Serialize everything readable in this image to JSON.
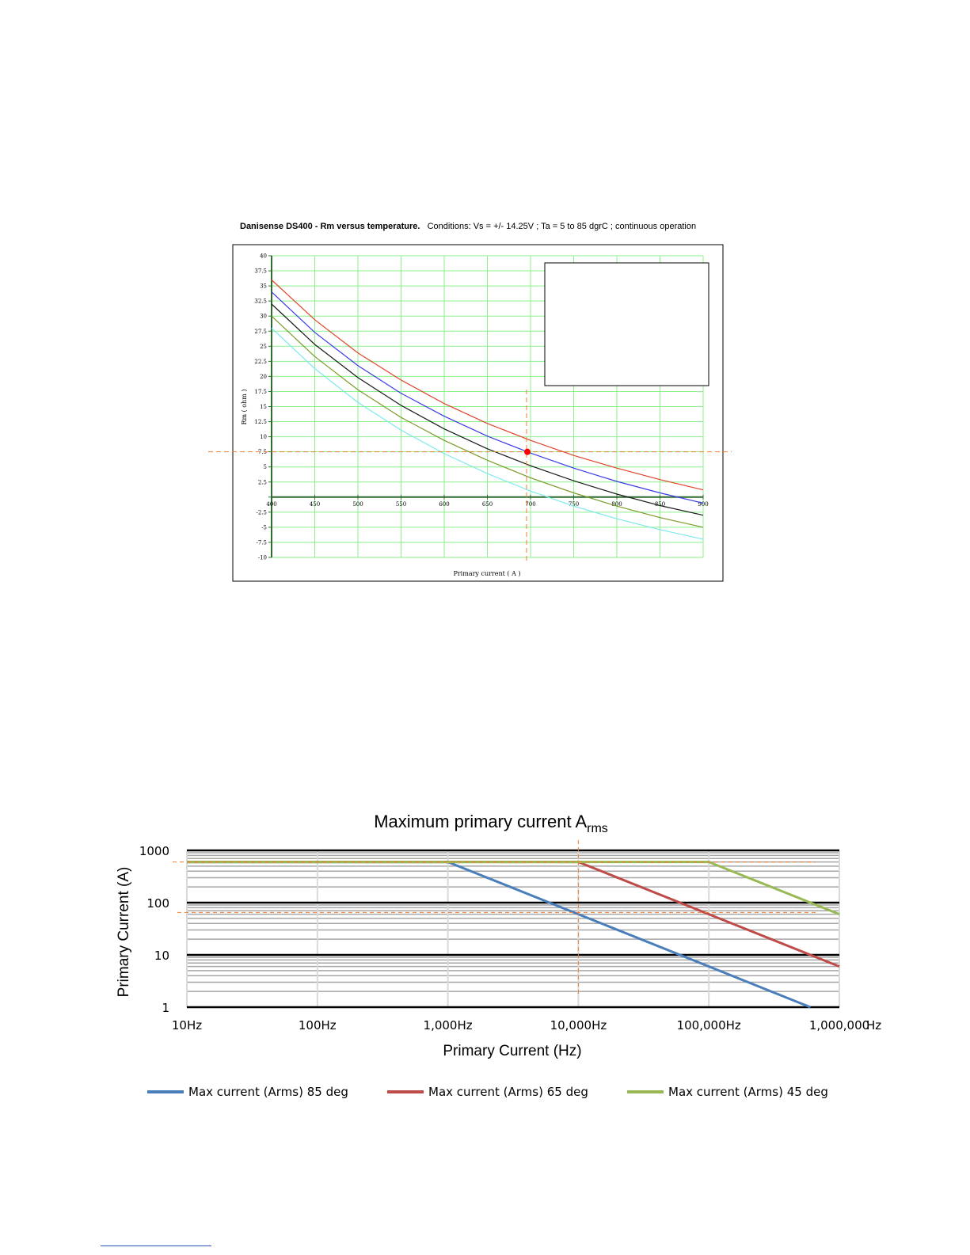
{
  "chart_data": [
    {
      "type": "line",
      "title": "Danisense DS400 - Rm versus temperature.",
      "subtitle": "Conditions: Vs = +/- 14.25V ; Ta = 5 to 85 dgrC ; continuous operation",
      "xlabel": "Primary current ( A )",
      "ylabel": "Rm ( ohm )",
      "xlim": [
        400,
        900
      ],
      "ylim": [
        -10,
        40
      ],
      "x_ticks": [
        "400",
        "450",
        "500",
        "550",
        "600",
        "650",
        "700",
        "750",
        "800",
        "850",
        "900"
      ],
      "y_ticks": [
        "40",
        "37.5",
        "35",
        "32.5",
        "30",
        "27.5",
        "25",
        "22.5",
        "20",
        "17.5",
        "15",
        "12.5",
        "10",
        "7.5",
        "5",
        "2.5",
        "",
        "-2.5",
        "-5",
        "-7.5",
        "-10"
      ],
      "grid": true,
      "legend": "top-right (empty box)",
      "colors": {
        "grid": "#8cf08c",
        "axis": "#2e6b2e",
        "marker": "#ff0000",
        "guide": "#f07c2c"
      },
      "series": [
        {
          "color": "#e0442a",
          "x": [
            400,
            450,
            500,
            550,
            600,
            650,
            700,
            750,
            800,
            850,
            900
          ],
          "y": [
            36.0,
            29.4,
            23.9,
            19.4,
            15.5,
            12.2,
            9.4,
            6.9,
            4.8,
            2.9,
            1.2
          ]
        },
        {
          "color": "#3a3ae8",
          "x": [
            400,
            450,
            500,
            550,
            600,
            650,
            700,
            750,
            800,
            850,
            900
          ],
          "y": [
            34.0,
            27.3,
            21.8,
            17.2,
            13.4,
            10.1,
            7.3,
            4.8,
            2.6,
            0.7,
            -1.0
          ]
        },
        {
          "color": "#1a1a1a",
          "x": [
            400,
            450,
            500,
            550,
            600,
            650,
            700,
            750,
            800,
            850,
            900
          ],
          "y": [
            32.0,
            25.3,
            19.8,
            15.2,
            11.3,
            8.0,
            5.2,
            2.7,
            0.5,
            -1.4,
            -3.0
          ]
        },
        {
          "color": "#7a9a2a",
          "x": [
            400,
            450,
            500,
            550,
            600,
            650,
            700,
            750,
            800,
            850,
            900
          ],
          "y": [
            30.0,
            23.3,
            17.8,
            13.2,
            9.4,
            6.1,
            3.2,
            0.7,
            -1.5,
            -3.4,
            -5.0
          ]
        },
        {
          "color": "#7ee8ee",
          "x": [
            400,
            450,
            500,
            550,
            600,
            650,
            700,
            750,
            800,
            850,
            900
          ],
          "y": [
            28.0,
            21.3,
            15.7,
            11.1,
            7.2,
            3.9,
            1.0,
            -1.5,
            -3.6,
            -5.4,
            -7.0
          ]
        }
      ],
      "marker": {
        "x": 700,
        "y": 7.5
      }
    },
    {
      "type": "line",
      "title_main": "Maximum primary current A",
      "title_sub": "rms",
      "xlabel": "Primary Current (Hz)",
      "ylabel": "Primary Current (A)",
      "x_scale": "log",
      "y_scale": "log",
      "xlim": [
        10,
        1000000
      ],
      "ylim": [
        1,
        1000
      ],
      "x_ticks": [
        "10Hz",
        "100Hz",
        "1,000Hz",
        "10,000Hz",
        "100,000Hz",
        "1,000,000"
      ],
      "x_tick_unit": "Hz",
      "y_ticks": [
        "1000",
        "100",
        "10",
        "1"
      ],
      "grid": true,
      "legend": "bottom",
      "colors": {
        "guide": "#f07c2c",
        "major_grid": "#000000",
        "minor_grid": "#a6a6a6"
      },
      "series": [
        {
          "name": "Max current (Arms) 85 deg",
          "color": "#4a7ebb",
          "x": [
            10,
            1000,
            10000,
            100000,
            600000
          ],
          "y": [
            600,
            600,
            60,
            6,
            1
          ]
        },
        {
          "name": "Max current (Arms) 65 deg",
          "color": "#be4b48",
          "x": [
            10,
            10000,
            100000,
            1000000
          ],
          "y": [
            600,
            600,
            60,
            6
          ]
        },
        {
          "name": "Max current (Arms) 45 deg",
          "color": "#98b954",
          "x": [
            10,
            100000,
            1000000
          ],
          "y": [
            600,
            600,
            60
          ]
        }
      ]
    }
  ]
}
